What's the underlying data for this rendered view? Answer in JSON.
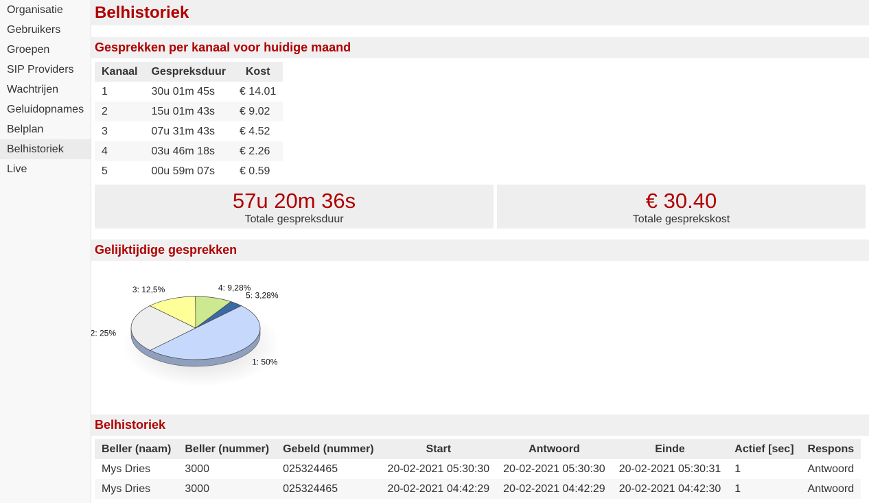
{
  "nav": {
    "items": [
      "Organisatie",
      "Gebruikers",
      "Groepen",
      "SIP Providers",
      "Wachtrijen",
      "Geluidopnames",
      "Belplan",
      "Belhistoriek",
      "Live"
    ],
    "active": 7
  },
  "page_title": "Belhistoriek",
  "channels": {
    "title": "Gesprekken per kanaal voor huidige maand",
    "header": [
      "Kanaal",
      "Gespreksduur",
      "Kost"
    ],
    "rows": [
      [
        "1",
        "30u 01m 45s",
        "€ 14.01"
      ],
      [
        "2",
        "15u 01m 43s",
        "€ 9.02"
      ],
      [
        "3",
        "07u 31m 43s",
        "€ 4.52"
      ],
      [
        "4",
        "03u 46m 18s",
        "€ 2.26"
      ],
      [
        "5",
        "00u 59m 07s",
        "€ 0.59"
      ]
    ]
  },
  "totals": [
    {
      "value": "57u 20m 36s",
      "label": "Totale gespreksduur"
    },
    {
      "value": "€ 30.40",
      "label": "Totale gesprekskost"
    }
  ],
  "concurrent": {
    "title": "Gelijktijdige gesprekken",
    "chart": {
      "type": "pie",
      "values": [
        50,
        25,
        12.5,
        9.28,
        3.28
      ],
      "value_labels": [
        "1: 50%",
        "2: 25%",
        "3: 12,5%",
        "4: 9,28%",
        "5: 3,28%"
      ],
      "colors": [
        "#c6d9fd",
        "#eeeeee",
        "#ffff99",
        "#cce98f",
        "#3a6aa3"
      ]
    }
  },
  "history": {
    "title": "Belhistoriek",
    "header": [
      "Beller (naam)",
      "Beller (nummer)",
      "Gebeld (nummer)",
      "Start",
      "Antwoord",
      "Einde",
      "Actief [sec]",
      "Respons"
    ],
    "rows": [
      [
        "Mys Dries",
        "3000",
        "025324465",
        "20-02-2021 05:30:30",
        "20-02-2021 05:30:30",
        "20-02-2021 05:30:31",
        "1",
        "Antwoord"
      ],
      [
        "Mys Dries",
        "3000",
        "025324465",
        "20-02-2021 04:42:29",
        "20-02-2021 04:42:29",
        "20-02-2021 04:42:30",
        "1",
        "Antwoord"
      ]
    ]
  }
}
